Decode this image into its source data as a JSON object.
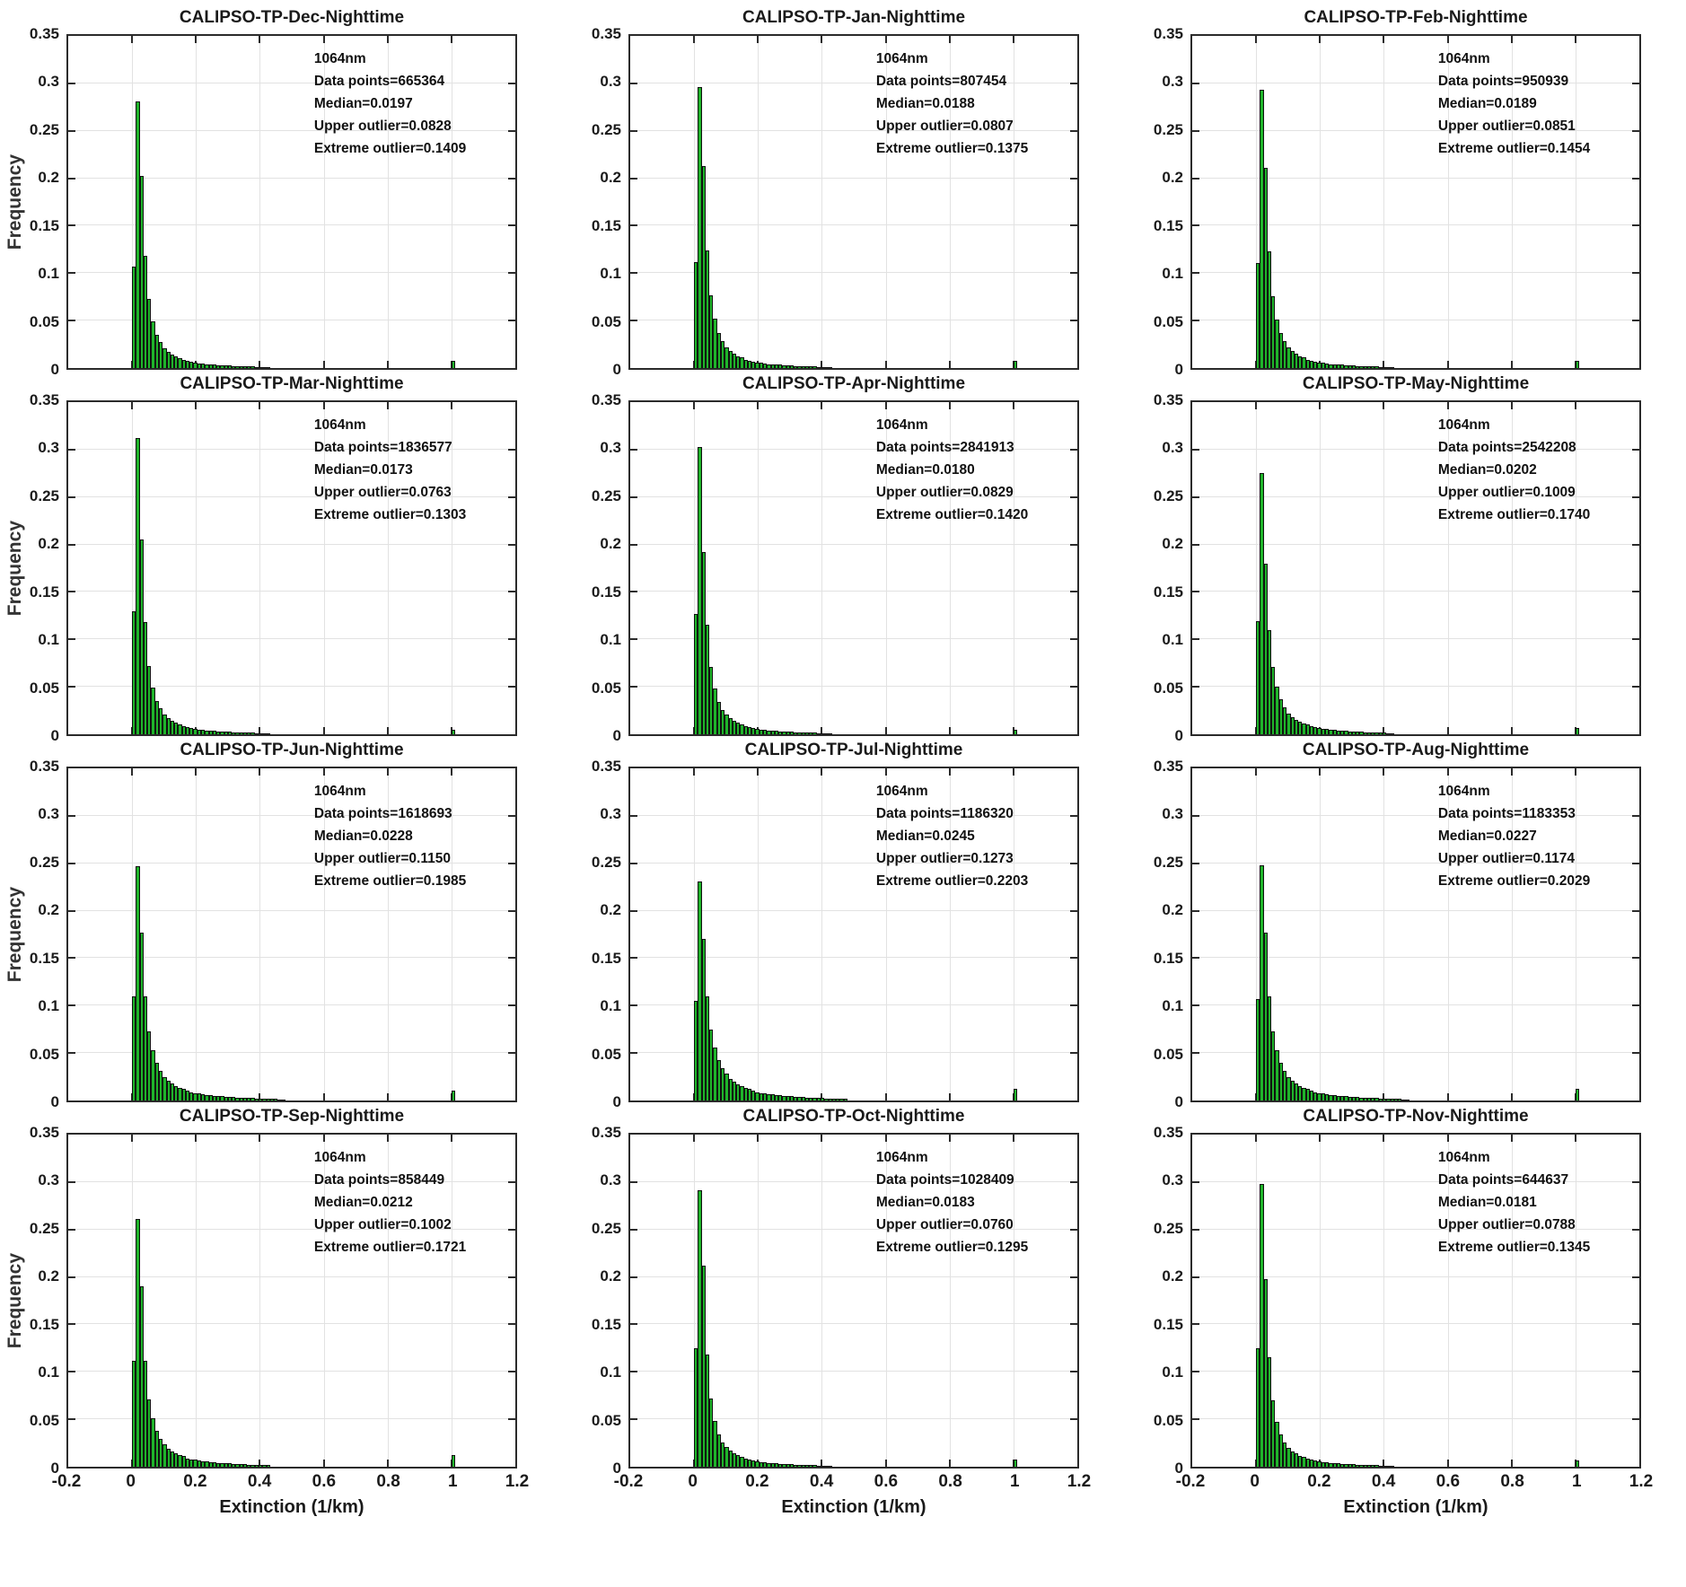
{
  "figure": {
    "ylabel": "Frequency",
    "xlabel": "Extinction (1/km)"
  },
  "axes": {
    "xlim": [
      -0.2,
      1.2
    ],
    "ylim": [
      0,
      0.35
    ],
    "x_ticks": [
      -0.2,
      0,
      0.2,
      0.4,
      0.6,
      0.8,
      1,
      1.2
    ],
    "x_tick_labels": [
      "-0.2",
      "0",
      "0.2",
      "0.4",
      "0.6",
      "0.8",
      "1",
      "1.2"
    ],
    "y_ticks": [
      0,
      0.05,
      0.1,
      0.15,
      0.2,
      0.25,
      0.3,
      0.35
    ],
    "y_tick_labels": [
      "0",
      "0.05",
      "0.1",
      "0.15",
      "0.2",
      "0.25",
      "0.3",
      "0.35"
    ],
    "grid": true,
    "bar_color": "#1fb42a",
    "bar_edge_color": "#101010",
    "bin_width": 0.012,
    "bin_start": 0
  },
  "chart_data": {
    "type": "bar",
    "note": "12 monthly histograms of CALIPSO-TP nighttime extinction; bins start at 0 with width 0.012 (frequencies estimated from gridlines); each plot has an isolated outlier bar near x=1",
    "subplots": [
      {
        "title": "CALIPSO-TP-Dec-Nighttime",
        "annotation_lines": [
          "1064nm",
          "Data points=665364",
          "Median=0.0197",
          "Upper outlier=0.0828",
          "Extreme outlier=0.1409"
        ],
        "data_points": 665364,
        "median": 0.0197,
        "upper_outlier": 0.0828,
        "extreme_outlier": 0.1409,
        "peak": 0.281,
        "bins": [
          0.107,
          0.281,
          0.202,
          0.118,
          0.073,
          0.049,
          0.035,
          0.027,
          0.021,
          0.017,
          0.014,
          0.012,
          0.01,
          0.009,
          0.008,
          0.007,
          0.006,
          0.005,
          0.005,
          0.004,
          0.004,
          0.004,
          0.003,
          0.003,
          0.003,
          0.003,
          0.002,
          0.002,
          0.002,
          0.002,
          0.002,
          0.002,
          0.001,
          0.001,
          0.001,
          0.001
        ],
        "outlier": {
          "x": 1.0,
          "value": 0.008
        }
      },
      {
        "title": "CALIPSO-TP-Jan-Nighttime",
        "annotation_lines": [
          "1064nm",
          "Data points=807454",
          "Median=0.0188",
          "Upper outlier=0.0807",
          "Extreme outlier=0.1375"
        ],
        "data_points": 807454,
        "median": 0.0188,
        "upper_outlier": 0.0807,
        "extreme_outlier": 0.1375,
        "peak": 0.296,
        "bins": [
          0.112,
          0.296,
          0.213,
          0.124,
          0.077,
          0.052,
          0.037,
          0.028,
          0.022,
          0.018,
          0.015,
          0.012,
          0.011,
          0.009,
          0.008,
          0.007,
          0.006,
          0.006,
          0.005,
          0.004,
          0.004,
          0.004,
          0.004,
          0.003,
          0.003,
          0.003,
          0.002,
          0.002,
          0.002,
          0.002,
          0.002,
          0.002,
          0.001,
          0.001,
          0.001,
          0.001
        ],
        "outlier": {
          "x": 1.0,
          "value": 0.008
        }
      },
      {
        "title": "CALIPSO-TP-Feb-Nighttime",
        "annotation_lines": [
          "1064nm",
          "Data points=950939",
          "Median=0.0189",
          "Upper outlier=0.0851",
          "Extreme outlier=0.1454"
        ],
        "data_points": 950939,
        "median": 0.0189,
        "upper_outlier": 0.0851,
        "extreme_outlier": 0.1454,
        "peak": 0.293,
        "bins": [
          0.111,
          0.293,
          0.211,
          0.123,
          0.076,
          0.051,
          0.037,
          0.028,
          0.022,
          0.018,
          0.015,
          0.012,
          0.011,
          0.009,
          0.008,
          0.007,
          0.006,
          0.006,
          0.005,
          0.004,
          0.004,
          0.004,
          0.004,
          0.003,
          0.003,
          0.003,
          0.002,
          0.002,
          0.002,
          0.002,
          0.002,
          0.002,
          0.001,
          0.001,
          0.001,
          0.001
        ],
        "outlier": {
          "x": 1.0,
          "value": 0.008
        }
      },
      {
        "title": "CALIPSO-TP-Mar-Nighttime",
        "annotation_lines": [
          "1064nm",
          "Data points=1836577",
          "Median=0.0173",
          "Upper outlier=0.0763",
          "Extreme outlier=0.1303"
        ],
        "data_points": 1836577,
        "median": 0.0173,
        "upper_outlier": 0.0763,
        "extreme_outlier": 0.1303,
        "peak": 0.312,
        "bins": [
          0.13,
          0.312,
          0.205,
          0.118,
          0.072,
          0.049,
          0.035,
          0.027,
          0.021,
          0.017,
          0.014,
          0.012,
          0.01,
          0.009,
          0.008,
          0.007,
          0.006,
          0.005,
          0.005,
          0.004,
          0.004,
          0.004,
          0.003,
          0.003,
          0.003,
          0.003,
          0.002,
          0.002,
          0.002,
          0.002,
          0.002,
          0.002,
          0.001,
          0.001,
          0.001,
          0.001
        ],
        "outlier": {
          "x": 1.0,
          "value": 0.005
        }
      },
      {
        "title": "CALIPSO-TP-Apr-Nighttime",
        "annotation_lines": [
          "1064nm",
          "Data points=2841913",
          "Median=0.0180",
          "Upper outlier=0.0829",
          "Extreme outlier=0.1420"
        ],
        "data_points": 2841913,
        "median": 0.018,
        "upper_outlier": 0.0829,
        "extreme_outlier": 0.142,
        "peak": 0.303,
        "bins": [
          0.127,
          0.303,
          0.192,
          0.115,
          0.071,
          0.048,
          0.034,
          0.026,
          0.021,
          0.017,
          0.014,
          0.012,
          0.01,
          0.009,
          0.008,
          0.007,
          0.006,
          0.005,
          0.005,
          0.004,
          0.004,
          0.004,
          0.003,
          0.003,
          0.003,
          0.003,
          0.002,
          0.002,
          0.002,
          0.002,
          0.002,
          0.002,
          0.001,
          0.001,
          0.001,
          0.001
        ],
        "outlier": {
          "x": 1.0,
          "value": 0.005
        }
      },
      {
        "title": "CALIPSO-TP-May-Nighttime",
        "annotation_lines": [
          "1064nm",
          "Data points=2542208",
          "Median=0.0202",
          "Upper outlier=0.1009",
          "Extreme outlier=0.1740"
        ],
        "data_points": 2542208,
        "median": 0.0202,
        "upper_outlier": 0.1009,
        "extreme_outlier": 0.174,
        "peak": 0.275,
        "bins": [
          0.119,
          0.275,
          0.18,
          0.11,
          0.071,
          0.05,
          0.037,
          0.028,
          0.022,
          0.018,
          0.015,
          0.013,
          0.011,
          0.01,
          0.009,
          0.008,
          0.007,
          0.006,
          0.006,
          0.005,
          0.005,
          0.004,
          0.004,
          0.004,
          0.003,
          0.003,
          0.003,
          0.003,
          0.002,
          0.002,
          0.002,
          0.002,
          0.002,
          0.002,
          0.001,
          0.001
        ],
        "outlier": {
          "x": 1.0,
          "value": 0.007
        }
      },
      {
        "title": "CALIPSO-TP-Jun-Nighttime",
        "annotation_lines": [
          "1064nm",
          "Data points=1618693",
          "Median=0.0228",
          "Upper outlier=0.1150",
          "Extreme outlier=0.1985"
        ],
        "data_points": 1618693,
        "median": 0.0228,
        "upper_outlier": 0.115,
        "extreme_outlier": 0.1985,
        "peak": 0.247,
        "bins": [
          0.11,
          0.247,
          0.177,
          0.11,
          0.073,
          0.053,
          0.04,
          0.031,
          0.025,
          0.021,
          0.018,
          0.015,
          0.013,
          0.012,
          0.01,
          0.009,
          0.008,
          0.008,
          0.007,
          0.006,
          0.006,
          0.005,
          0.005,
          0.005,
          0.004,
          0.004,
          0.004,
          0.003,
          0.003,
          0.003,
          0.003,
          0.003,
          0.002,
          0.002,
          0.002,
          0.002,
          0.002,
          0.002,
          0.001,
          0.001
        ],
        "outlier": {
          "x": 1.0,
          "value": 0.01
        }
      },
      {
        "title": "CALIPSO-TP-Jul-Nighttime",
        "annotation_lines": [
          "1064nm",
          "Data points=1186320",
          "Median=0.0245",
          "Upper outlier=0.1273",
          "Extreme outlier=0.2203"
        ],
        "data_points": 1186320,
        "median": 0.0245,
        "upper_outlier": 0.1273,
        "extreme_outlier": 0.2203,
        "peak": 0.231,
        "bins": [
          0.105,
          0.231,
          0.17,
          0.11,
          0.075,
          0.056,
          0.043,
          0.034,
          0.028,
          0.023,
          0.02,
          0.017,
          0.015,
          0.013,
          0.012,
          0.01,
          0.009,
          0.008,
          0.008,
          0.007,
          0.007,
          0.006,
          0.006,
          0.005,
          0.005,
          0.005,
          0.004,
          0.004,
          0.004,
          0.003,
          0.003,
          0.003,
          0.003,
          0.003,
          0.002,
          0.002,
          0.002,
          0.002,
          0.002,
          0.002
        ],
        "outlier": {
          "x": 1.0,
          "value": 0.012
        }
      },
      {
        "title": "CALIPSO-TP-Aug-Nighttime",
        "annotation_lines": [
          "1064nm",
          "Data points=1183353",
          "Median=0.0227",
          "Upper outlier=0.1174",
          "Extreme outlier=0.2029"
        ],
        "data_points": 1183353,
        "median": 0.0227,
        "upper_outlier": 0.1174,
        "extreme_outlier": 0.2029,
        "peak": 0.248,
        "bins": [
          0.107,
          0.248,
          0.177,
          0.11,
          0.073,
          0.053,
          0.04,
          0.031,
          0.025,
          0.021,
          0.018,
          0.015,
          0.013,
          0.012,
          0.01,
          0.009,
          0.008,
          0.008,
          0.007,
          0.006,
          0.006,
          0.005,
          0.005,
          0.005,
          0.004,
          0.004,
          0.004,
          0.003,
          0.003,
          0.003,
          0.003,
          0.003,
          0.002,
          0.002,
          0.002,
          0.002,
          0.002,
          0.002,
          0.001,
          0.001
        ],
        "outlier": {
          "x": 1.0,
          "value": 0.012
        }
      },
      {
        "title": "CALIPSO-TP-Sep-Nighttime",
        "annotation_lines": [
          "1064nm",
          "Data points=858449",
          "Median=0.0212",
          "Upper outlier=0.1002",
          "Extreme outlier=0.1721"
        ],
        "data_points": 858449,
        "median": 0.0212,
        "upper_outlier": 0.1002,
        "extreme_outlier": 0.1721,
        "peak": 0.261,
        "bins": [
          0.112,
          0.261,
          0.19,
          0.112,
          0.071,
          0.051,
          0.038,
          0.029,
          0.024,
          0.019,
          0.016,
          0.014,
          0.012,
          0.011,
          0.009,
          0.008,
          0.008,
          0.007,
          0.006,
          0.006,
          0.005,
          0.005,
          0.004,
          0.004,
          0.004,
          0.004,
          0.003,
          0.003,
          0.003,
          0.003,
          0.002,
          0.002,
          0.002,
          0.002,
          0.002,
          0.002
        ],
        "outlier": {
          "x": 1.0,
          "value": 0.012
        }
      },
      {
        "title": "CALIPSO-TP-Oct-Nighttime",
        "annotation_lines": [
          "1064nm",
          "Data points=1028409",
          "Median=0.0183",
          "Upper outlier=0.0760",
          "Extreme outlier=0.1295"
        ],
        "data_points": 1028409,
        "median": 0.0183,
        "upper_outlier": 0.076,
        "extreme_outlier": 0.1295,
        "peak": 0.291,
        "bins": [
          0.125,
          0.291,
          0.212,
          0.118,
          0.072,
          0.048,
          0.034,
          0.026,
          0.021,
          0.017,
          0.014,
          0.012,
          0.01,
          0.009,
          0.008,
          0.007,
          0.006,
          0.005,
          0.005,
          0.004,
          0.004,
          0.004,
          0.003,
          0.003,
          0.003,
          0.003,
          0.002,
          0.002,
          0.002,
          0.002,
          0.002,
          0.002,
          0.001,
          0.001,
          0.001,
          0.001
        ],
        "outlier": {
          "x": 1.0,
          "value": 0.008
        }
      },
      {
        "title": "CALIPSO-TP-Nov-Nighttime",
        "annotation_lines": [
          "1064nm",
          "Data points=644637",
          "Median=0.0181",
          "Upper outlier=0.0788",
          "Extreme outlier=0.1345"
        ],
        "data_points": 644637,
        "median": 0.0181,
        "upper_outlier": 0.0788,
        "extreme_outlier": 0.1345,
        "peak": 0.298,
        "bins": [
          0.125,
          0.298,
          0.198,
          0.115,
          0.07,
          0.047,
          0.034,
          0.026,
          0.02,
          0.016,
          0.014,
          0.011,
          0.01,
          0.009,
          0.008,
          0.007,
          0.006,
          0.005,
          0.005,
          0.004,
          0.004,
          0.004,
          0.003,
          0.003,
          0.003,
          0.003,
          0.002,
          0.002,
          0.002,
          0.002,
          0.002,
          0.002,
          0.001,
          0.001,
          0.001,
          0.001
        ],
        "outlier": {
          "x": 1.0,
          "value": 0.007
        }
      }
    ]
  }
}
